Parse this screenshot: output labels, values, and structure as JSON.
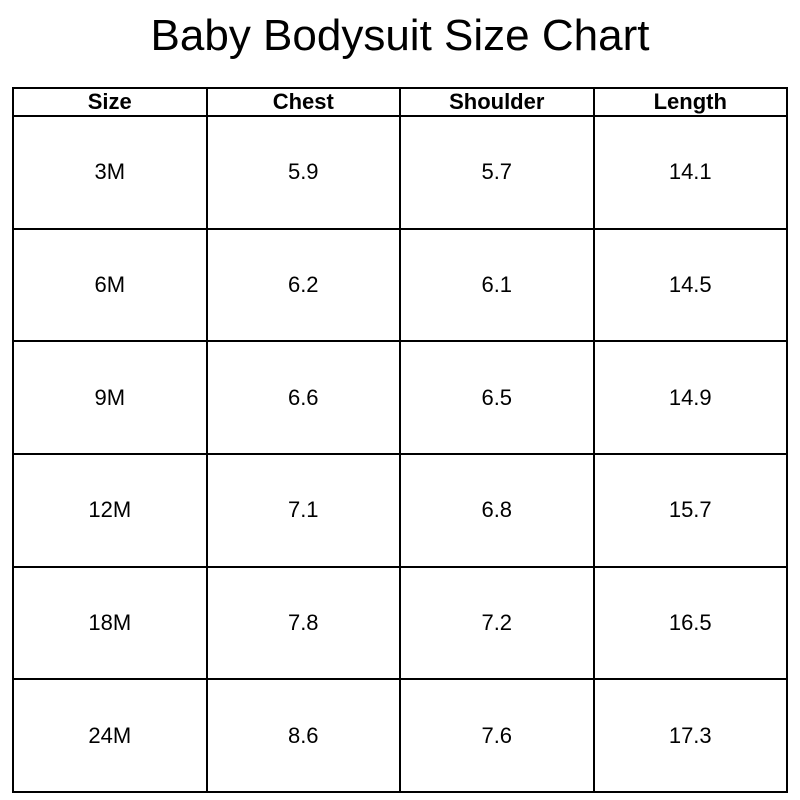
{
  "title": "Baby Bodysuit Size Chart",
  "table": {
    "headers": [
      "Size",
      "Chest",
      "Shoulder",
      "Length"
    ],
    "rows": [
      [
        "3M",
        "5.9",
        "5.7",
        "14.1"
      ],
      [
        "6M",
        "6.2",
        "6.1",
        "14.5"
      ],
      [
        "9M",
        "6.6",
        "6.5",
        "14.9"
      ],
      [
        "12M",
        "7.1",
        "6.8",
        "15.7"
      ],
      [
        "18M",
        "7.8",
        "7.2",
        "16.5"
      ],
      [
        "24M",
        "8.6",
        "7.6",
        "17.3"
      ]
    ]
  }
}
